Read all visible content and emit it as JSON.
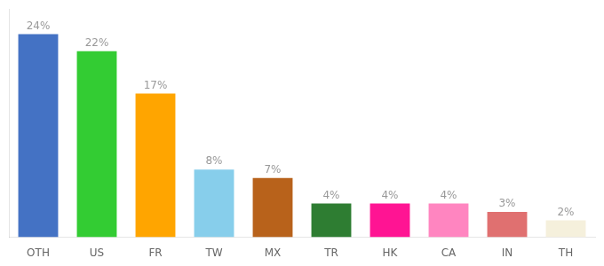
{
  "chart_data": {
    "type": "bar",
    "categories": [
      "OTH",
      "US",
      "FR",
      "TW",
      "MX",
      "TR",
      "HK",
      "CA",
      "IN",
      "TH"
    ],
    "values": [
      24,
      22,
      17,
      8,
      7,
      4,
      4,
      4,
      3,
      2
    ],
    "value_labels": [
      "24%",
      "22%",
      "17%",
      "8%",
      "7%",
      "4%",
      "4%",
      "4%",
      "3%",
      "2%"
    ],
    "colors": [
      "#4472C4",
      "#33CC33",
      "#FFA500",
      "#87CEEB",
      "#B8621B",
      "#2E7D32",
      "#FF1493",
      "#FF85C0",
      "#E07070",
      "#F5F0DC"
    ],
    "ylim": [
      0,
      27
    ],
    "grid": false,
    "data_labels": true,
    "tick_labels": "x"
  }
}
